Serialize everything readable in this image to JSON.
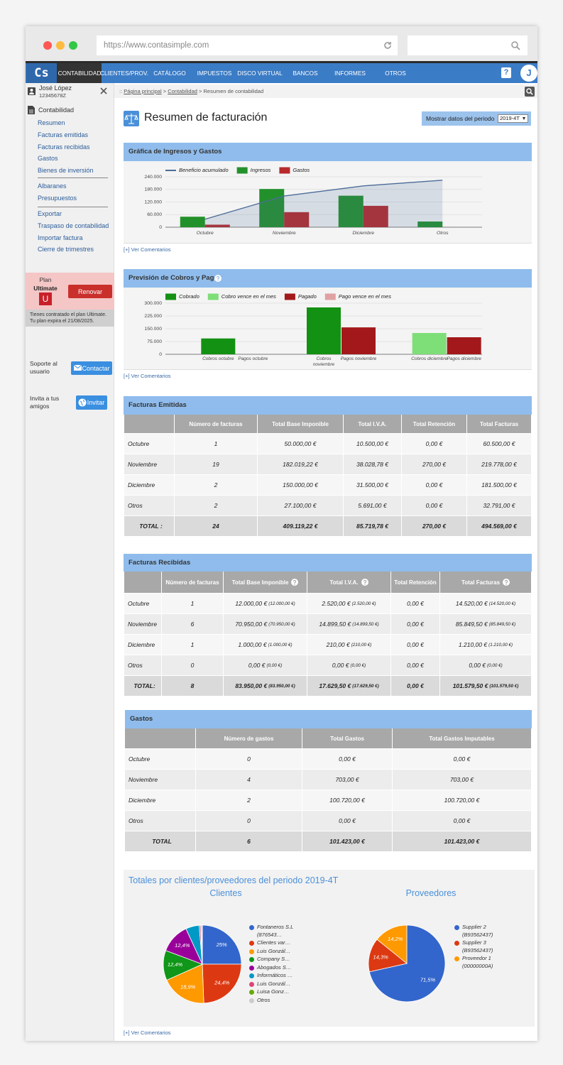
{
  "browser": {
    "url": "https://www.contasimple.com"
  },
  "nav": {
    "logo": "Cs",
    "items": [
      "CONTABILIDAD",
      "CLIENTES/PROV.",
      "CATÁLOGO",
      "IMPUESTOS",
      "DISCO VIRTUAL",
      "BANCOS",
      "INFORMES",
      "OTROS"
    ],
    "help": "?",
    "avatar": "J"
  },
  "sidebar": {
    "user": {
      "name": "José López",
      "id": "12345678Z"
    },
    "section": "Contabilidad",
    "links": [
      [
        "Resumen",
        "Facturas emitidas",
        "Facturas recibidas",
        "Gastos",
        "Bienes de inversión"
      ],
      [
        "Albaranes",
        "Presupuestos"
      ],
      [
        "Exportar",
        "Traspaso de contabilidad",
        "Importar factura",
        "Cierre de trimestres"
      ]
    ],
    "plan": {
      "label": "Plan",
      "name": "Ultimate",
      "badge": "U",
      "button": "Renovar",
      "note": [
        "Tienes contratado el plan Ultimate.",
        "Tu plan expira el 21/08/2025."
      ]
    },
    "support": {
      "text": "Soporte al usuario",
      "button": "Contactar"
    },
    "invite": {
      "text": "Invita a tus amigos",
      "button": "Invitar"
    }
  },
  "breadcrumb": {
    "prefix": "::",
    "items": [
      "Página principal",
      "Contabilidad",
      "Resumen de contabilidad"
    ],
    "separator": ">"
  },
  "page": {
    "title": "Resumen de facturación",
    "period_label": "Mostrar datos del periodo",
    "period": "2019-4T"
  },
  "comments_link": "[+] Ver Comentarios",
  "chart_data": [
    {
      "type": "bar",
      "title": "Gráfica de Ingresos y Gastos",
      "categories": [
        "Octubre",
        "Noviembre",
        "Diciembre",
        "Otros"
      ],
      "series": [
        {
          "name": "Beneficio acumulado",
          "type": "line",
          "color": "#4c6d99",
          "values": [
            38000,
            148366,
            196646,
            223746
          ]
        },
        {
          "name": "Ingresos",
          "color": "#23912b",
          "values": [
            50000,
            182019,
            150000,
            27100
          ]
        },
        {
          "name": "Gastos",
          "color": "#b8292b",
          "values": [
            12000,
            71653,
            101720,
            0
          ]
        }
      ],
      "ylim": [
        0,
        240000
      ],
      "yticks": [
        0,
        {
          "value": 60000,
          "label": "60.000"
        },
        {
          "value": 120000,
          "label": "120.000"
        },
        {
          "value": 180000,
          "label": "180.000"
        },
        {
          "value": 240000,
          "label": "240.000"
        }
      ],
      "grid": true
    },
    {
      "type": "bar",
      "title": "Previsión de Cobros y Pagos",
      "categories": [
        "Cobros octubre",
        "Pagos octubre",
        "Cobros noviembre",
        "Pagos noviembre",
        "Cobros diciembre",
        "Pagos diciembre"
      ],
      "series": [
        {
          "name": "Cobrado",
          "color": "#139113",
          "values": [
            93000,
            null,
            275000,
            null,
            null,
            null
          ]
        },
        {
          "name": "Cobro vence en el mes",
          "color": "#7ede78",
          "values": [
            null,
            null,
            null,
            null,
            125000,
            null
          ]
        },
        {
          "name": "Pagado",
          "color": "#a3191b",
          "values": [
            null,
            null,
            null,
            158000,
            null,
            100000
          ]
        },
        {
          "name": "Pago vence en el mes",
          "color": "#e0a1a3",
          "values": [
            null,
            null,
            null,
            null,
            null,
            null
          ]
        }
      ],
      "ylim": [
        0,
        300000
      ],
      "yticks": [
        0,
        {
          "value": 75000,
          "label": "75.000"
        },
        {
          "value": 150000,
          "label": "150.000"
        },
        {
          "value": 225000,
          "label": "225.000"
        },
        {
          "value": 300000,
          "label": "300.000"
        }
      ],
      "grid": true
    },
    {
      "type": "pie",
      "title": "Clientes",
      "categories": [
        "Fontaneros S.L (876543…",
        "Clientes var…",
        "Luis Gonzál…",
        "Company S…",
        "Abogados S…",
        "Informáticos …",
        "Luis Gonzál…",
        "Luisa Gonz…",
        "Otros"
      ],
      "values": [
        25,
        24.4,
        18.9,
        12.4,
        12.4,
        5.6,
        0.6,
        0.4,
        0.3
      ],
      "value_labels": [
        "25%",
        "24,4%",
        "18,9%",
        "12,4%",
        "12,4%",
        null,
        null,
        null,
        null
      ],
      "colors": [
        "#3366cc",
        "#dc3912",
        "#ff9900",
        "#109618",
        "#990099",
        "#0099c6",
        "#dd4477",
        "#66aa00",
        "#cccccc"
      ]
    },
    {
      "type": "pie",
      "title": "Proveedores",
      "categories": [
        "Supplier 2 (B93562437)",
        "Supplier 3 (B93562437)",
        "Proveedor 1 (00000000A)"
      ],
      "values": [
        71.5,
        14.3,
        14.2
      ],
      "value_labels": [
        "71,5%",
        "14,3%",
        "14,2%"
      ],
      "colors": [
        "#3366cc",
        "#dc3912",
        "#ff9900"
      ]
    }
  ],
  "tables": [
    {
      "title": "Facturas Emitidas",
      "headers": [
        "",
        "Número de facturas",
        "Total Base Imponible",
        "Total I.V.A.",
        "Total Retención",
        "Total Facturas"
      ],
      "help_columns": [],
      "rows": [
        [
          "Octubre",
          "1",
          "50.000,00 €",
          "10.500,00 €",
          "0,00 €",
          "60.500,00 €"
        ],
        [
          "Noviembre",
          "19",
          "182.019,22 €",
          "38.028,78 €",
          "270,00 €",
          "219.778,00 €"
        ],
        [
          "Diciembre",
          "2",
          "150.000,00 €",
          "31.500,00 €",
          "0,00 €",
          "181.500,00 €"
        ],
        [
          "Otros",
          "2",
          "27.100,00 €",
          "5.691,00 €",
          "0,00 €",
          "32.791,00 €"
        ],
        [
          "TOTAL :",
          "24",
          "409.119,22 €",
          "85.719,78 €",
          "270,00 €",
          "494.569,00 €"
        ]
      ]
    },
    {
      "title": "Facturas Recibidas",
      "headers": [
        "",
        "Número de facturas",
        "Total Base Imponible",
        "Total I.V.A.",
        "Total Retención",
        "Total Facturas"
      ],
      "help_columns": [
        2,
        3,
        5
      ],
      "rows": [
        [
          "Octubre",
          "1",
          [
            "12.000,00 €",
            "(12.000,00 €)"
          ],
          [
            "2.520,00 €",
            "(2.520,00 €)"
          ],
          "0,00 €",
          [
            "14.520,00 €",
            "(14.520,00 €)"
          ]
        ],
        [
          "Noviembre",
          "6",
          [
            "70.950,00 €",
            "(70.950,00 €)"
          ],
          [
            "14.899,50 €",
            "(14.899,50 €)"
          ],
          "0,00 €",
          [
            "85.849,50 €",
            "(85.849,50 €)"
          ]
        ],
        [
          "Diciembre",
          "1",
          [
            "1.000,00 €",
            "(1.000,00 €)"
          ],
          [
            "210,00 €",
            "(210,00 €)"
          ],
          "0,00 €",
          [
            "1.210,00 €",
            "(1.210,00 €)"
          ]
        ],
        [
          "Otros",
          "0",
          [
            "0,00 €",
            "(0,00 €)"
          ],
          [
            "0,00 €",
            "(0,00 €)"
          ],
          "0,00 €",
          [
            "0,00 €",
            "(0,00 €)"
          ]
        ],
        [
          "TOTAL:",
          "8",
          [
            "83.950,00 €",
            "(83.950,00 €)"
          ],
          [
            "17.629,50 €",
            "(17.629,50 €)"
          ],
          "0,00 €",
          [
            "101.579,50 €",
            "(101.579,50 €)"
          ]
        ]
      ]
    },
    {
      "title": "Gastos",
      "headers": [
        "",
        "Número de gastos",
        "Total Gastos",
        "Total Gastos Imputables"
      ],
      "help_columns": [],
      "rows": [
        [
          "Octubre",
          "0",
          "0,00 €",
          "0,00 €"
        ],
        [
          "Noviembre",
          "4",
          "703,00 €",
          "703,00 €"
        ],
        [
          "Diciembre",
          "2",
          "100.720,00 €",
          "100.720,00 €"
        ],
        [
          "Otros",
          "0",
          "0,00 €",
          "0,00 €"
        ],
        [
          "TOTAL",
          "6",
          "101.423,00 €",
          "101.423,00 €"
        ]
      ]
    }
  ],
  "totals": {
    "title": "Totales por clientes/proveedores del periodo 2019-4T"
  }
}
